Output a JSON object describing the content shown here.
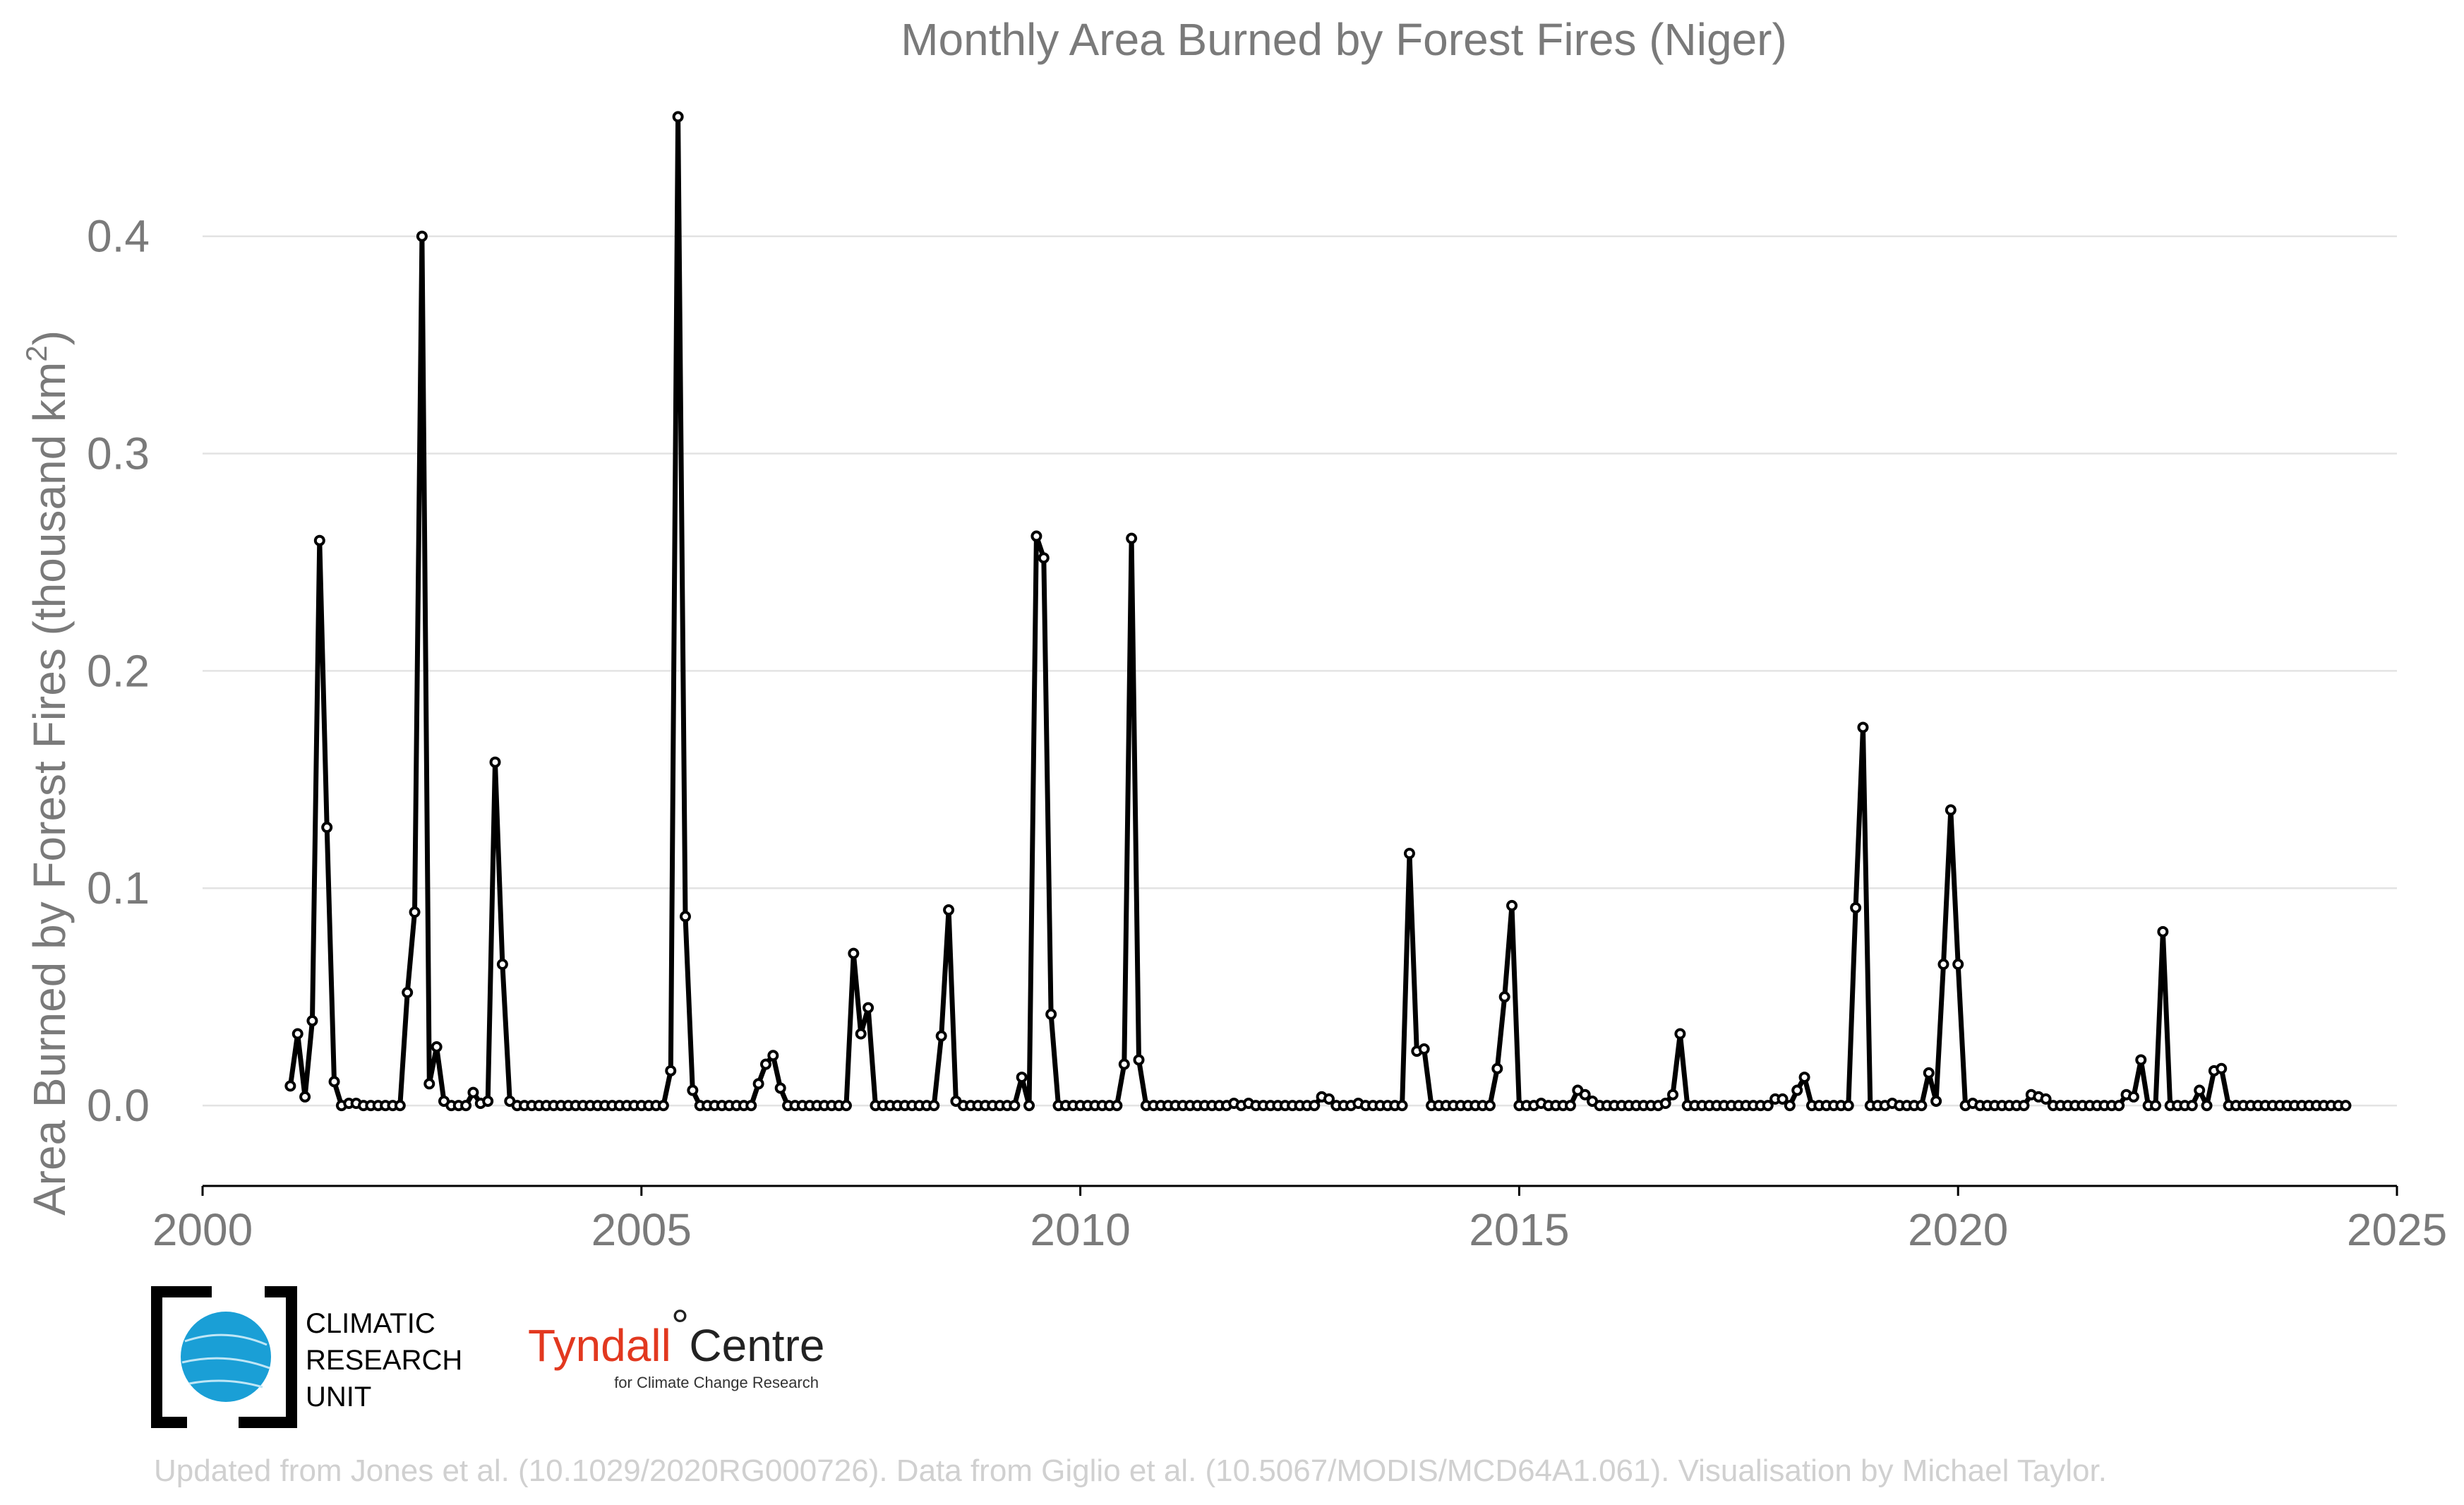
{
  "chart_data": {
    "type": "line",
    "title": "Monthly Area Burned by Forest Fires (Niger)",
    "ylabel": "Area Burned by Forest Fires (thousand km²)",
    "ylabel_main": "Area Burned by Forest Fires (thousand km",
    "ylabel_sup": "2",
    "ylabel_close": ")",
    "xlabel": "",
    "xlim": [
      2000,
      2025
    ],
    "ylim": [
      -0.037,
      0.46
    ],
    "x_ticks": [
      2000,
      2005,
      2010,
      2015,
      2020,
      2025
    ],
    "y_ticks": [
      0.0,
      0.1,
      0.2,
      0.3,
      0.4
    ],
    "y_tick_labels": [
      "0.0",
      "0.1",
      "0.2",
      "0.3",
      "0.4"
    ],
    "grid": "horizontal",
    "line_color": "#000000",
    "start_year": 2001,
    "start_month": 1,
    "values": [
      0.009,
      0.033,
      0.004,
      0.039,
      0.26,
      0.128,
      0.011,
      0.0,
      0.001,
      0.001,
      0.0,
      0.0,
      0.0,
      0.0,
      0.0,
      0.0,
      0.052,
      0.089,
      0.4,
      0.01,
      0.027,
      0.002,
      0.0,
      0.0,
      0.0,
      0.006,
      0.001,
      0.002,
      0.158,
      0.065,
      0.002,
      0.0,
      0.0,
      0.0,
      0.0,
      0.0,
      0.0,
      0.0,
      0.0,
      0.0,
      0.0,
      0.0,
      0.0,
      0.0,
      0.0,
      0.0,
      0.0,
      0.0,
      0.0,
      0.0,
      0.0,
      0.0,
      0.016,
      0.455,
      0.087,
      0.007,
      0.0,
      0.0,
      0.0,
      0.0,
      0.0,
      0.0,
      0.0,
      0.0,
      0.01,
      0.019,
      0.023,
      0.008,
      0.0,
      0.0,
      0.0,
      0.0,
      0.0,
      0.0,
      0.0,
      0.0,
      0.0,
      0.07,
      0.033,
      0.045,
      0.0,
      0.0,
      0.0,
      0.0,
      0.0,
      0.0,
      0.0,
      0.0,
      0.0,
      0.032,
      0.09,
      0.002,
      0.0,
      0.0,
      0.0,
      0.0,
      0.0,
      0.0,
      0.0,
      0.0,
      0.013,
      0.0,
      0.262,
      0.252,
      0.042,
      0.0,
      0.0,
      0.0,
      0.0,
      0.0,
      0.0,
      0.0,
      0.0,
      0.0,
      0.019,
      0.261,
      0.021,
      0.0,
      0.0,
      0.0,
      0.0,
      0.0,
      0.0,
      0.0,
      0.0,
      0.0,
      0.0,
      0.0,
      0.0,
      0.001,
      0.0,
      0.001,
      0.0,
      0.0,
      0.0,
      0.0,
      0.0,
      0.0,
      0.0,
      0.0,
      0.0,
      0.004,
      0.003,
      0.0,
      0.0,
      0.0,
      0.001,
      0.0,
      0.0,
      0.0,
      0.0,
      0.0,
      0.0,
      0.116,
      0.025,
      0.026,
      0.0,
      0.0,
      0.0,
      0.0,
      0.0,
      0.0,
      0.0,
      0.0,
      0.0,
      0.017,
      0.05,
      0.092,
      0.0,
      0.0,
      0.0,
      0.001,
      0.0,
      0.0,
      0.0,
      0.0,
      0.007,
      0.005,
      0.002,
      0.0,
      0.0,
      0.0,
      0.0,
      0.0,
      0.0,
      0.0,
      0.0,
      0.0,
      0.001,
      0.005,
      0.033,
      0.0,
      0.0,
      0.0,
      0.0,
      0.0,
      0.0,
      0.0,
      0.0,
      0.0,
      0.0,
      0.0,
      0.0,
      0.003,
      0.003,
      0.0,
      0.007,
      0.013,
      0.0,
      0.0,
      0.0,
      0.0,
      0.0,
      0.0,
      0.091,
      0.174,
      0.0,
      0.0,
      0.0,
      0.001,
      0.0,
      0.0,
      0.0,
      0.0,
      0.015,
      0.002,
      0.065,
      0.136,
      0.065,
      0.0,
      0.001,
      0.0,
      0.0,
      0.0,
      0.0,
      0.0,
      0.0,
      0.0,
      0.005,
      0.004,
      0.003,
      0.0,
      0.0,
      0.0,
      0.0,
      0.0,
      0.0,
      0.0,
      0.0,
      0.0,
      0.0,
      0.005,
      0.004,
      0.021,
      0.0,
      0.0,
      0.08,
      0.0,
      0.0,
      0.0,
      0.0,
      0.007,
      0.0,
      0.016,
      0.017,
      0.0,
      0.0,
      0.0,
      0.0,
      0.0,
      0.0,
      0.0,
      0.0,
      0.0,
      0.0,
      0.0,
      0.0,
      0.0,
      0.0,
      0.0,
      0.0,
      0.0
    ]
  },
  "logos": {
    "cru_line1": "CLIMATIC",
    "cru_line2": "RESEARCH",
    "cru_line3": "UNIT",
    "tyndall_name": "Tyndall",
    "tyndall_degree": "°",
    "tyndall_centre": "Centre",
    "tyndall_sub": "for Climate Change Research"
  },
  "footer": "Updated from Jones et al. (10.1029/2020RG000726). Data from Giglio et al. (10.5067/MODIS/MCD64A1.061). Visualisation by Michael Taylor."
}
